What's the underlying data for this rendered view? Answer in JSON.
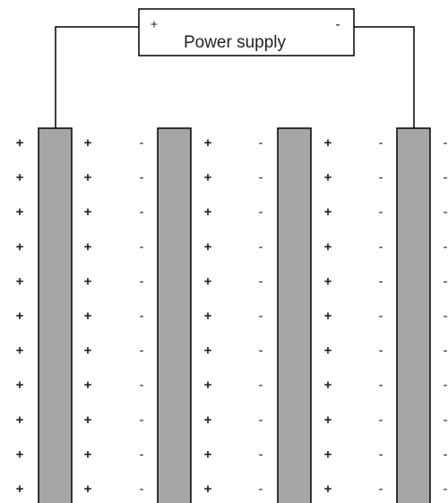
{
  "power_supply": {
    "label": "Power supply",
    "positive": "+",
    "negative": "-"
  },
  "charge_columns": [
    "+",
    "+",
    "-",
    "+",
    "-",
    "+",
    "-",
    "-"
  ]
}
